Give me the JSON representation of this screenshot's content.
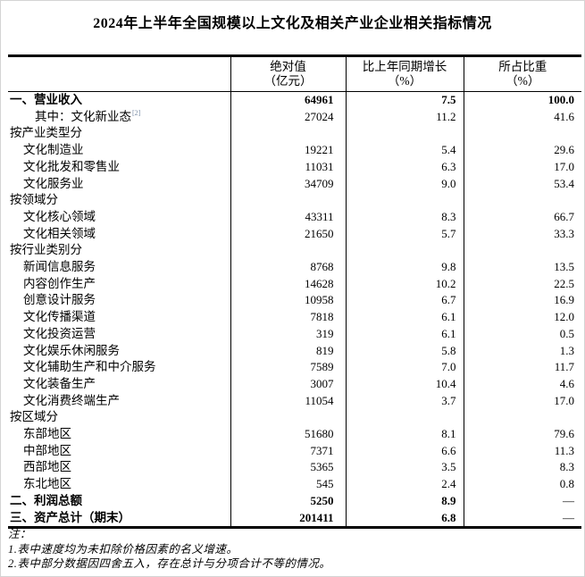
{
  "page": {
    "title": "2024年上半年全国规模以上文化及相关产业企业相关指标情况"
  },
  "table": {
    "header": {
      "label_col": "",
      "cols": [
        {
          "line1": "绝对值",
          "line2": "（亿元）"
        },
        {
          "line1": "比上年同期增长",
          "line2": "（%）"
        },
        {
          "line1": "所占比重",
          "line2": "（%）"
        }
      ]
    },
    "rows": [
      {
        "label": "一、营业收入",
        "indent": 0,
        "bold": true,
        "values": [
          "64961",
          "7.5",
          "100.0"
        ]
      },
      {
        "label": "其中：文化新业态",
        "sup": "[2]",
        "indent": 2,
        "bold": false,
        "values": [
          "27024",
          "11.2",
          "41.6"
        ]
      },
      {
        "label": "按产业类型分",
        "indent": 0,
        "bold": false,
        "values": [
          "",
          "",
          ""
        ]
      },
      {
        "label": "文化制造业",
        "indent": 1,
        "bold": false,
        "values": [
          "19221",
          "5.4",
          "29.6"
        ]
      },
      {
        "label": "文化批发和零售业",
        "indent": 1,
        "bold": false,
        "values": [
          "11031",
          "6.3",
          "17.0"
        ]
      },
      {
        "label": "文化服务业",
        "indent": 1,
        "bold": false,
        "values": [
          "34709",
          "9.0",
          "53.4"
        ]
      },
      {
        "label": "按领域分",
        "indent": 0,
        "bold": false,
        "values": [
          "",
          "",
          ""
        ]
      },
      {
        "label": "文化核心领域",
        "indent": 1,
        "bold": false,
        "values": [
          "43311",
          "8.3",
          "66.7"
        ]
      },
      {
        "label": "文化相关领域",
        "indent": 1,
        "bold": false,
        "values": [
          "21650",
          "5.7",
          "33.3"
        ]
      },
      {
        "label": "按行业类别分",
        "indent": 0,
        "bold": false,
        "values": [
          "",
          "",
          ""
        ]
      },
      {
        "label": "新闻信息服务",
        "indent": 1,
        "bold": false,
        "values": [
          "8768",
          "9.8",
          "13.5"
        ]
      },
      {
        "label": "内容创作生产",
        "indent": 1,
        "bold": false,
        "values": [
          "14628",
          "10.2",
          "22.5"
        ]
      },
      {
        "label": "创意设计服务",
        "indent": 1,
        "bold": false,
        "values": [
          "10958",
          "6.7",
          "16.9"
        ]
      },
      {
        "label": "文化传播渠道",
        "indent": 1,
        "bold": false,
        "values": [
          "7818",
          "6.1",
          "12.0"
        ]
      },
      {
        "label": "文化投资运营",
        "indent": 1,
        "bold": false,
        "values": [
          "319",
          "6.1",
          "0.5"
        ]
      },
      {
        "label": "文化娱乐休闲服务",
        "indent": 1,
        "bold": false,
        "values": [
          "819",
          "5.8",
          "1.3"
        ]
      },
      {
        "label": "文化辅助生产和中介服务",
        "indent": 1,
        "bold": false,
        "values": [
          "7589",
          "7.0",
          "11.7"
        ]
      },
      {
        "label": "文化装备生产",
        "indent": 1,
        "bold": false,
        "values": [
          "3007",
          "10.4",
          "4.6"
        ]
      },
      {
        "label": "文化消费终端生产",
        "indent": 1,
        "bold": false,
        "values": [
          "11054",
          "3.7",
          "17.0"
        ]
      },
      {
        "label": "按区域分",
        "indent": 0,
        "bold": false,
        "values": [
          "",
          "",
          ""
        ]
      },
      {
        "label": "东部地区",
        "indent": 1,
        "bold": false,
        "values": [
          "51680",
          "8.1",
          "79.6"
        ]
      },
      {
        "label": "中部地区",
        "indent": 1,
        "bold": false,
        "values": [
          "7371",
          "6.6",
          "11.3"
        ]
      },
      {
        "label": "西部地区",
        "indent": 1,
        "bold": false,
        "values": [
          "5365",
          "3.5",
          "8.3"
        ]
      },
      {
        "label": "东北地区",
        "indent": 1,
        "bold": false,
        "values": [
          "545",
          "2.4",
          "0.8"
        ]
      },
      {
        "label": "二、利润总额",
        "indent": 0,
        "bold": true,
        "values": [
          "5250",
          "8.9",
          "—"
        ]
      },
      {
        "label": "三、资产总计（期末）",
        "indent": 0,
        "bold": true,
        "values": [
          "201411",
          "6.8",
          "—"
        ]
      }
    ]
  },
  "notes": {
    "label": "注：",
    "items": [
      "1.表中速度均为未扣除价格因素的名义增速。",
      "2.表中部分数据因四舍五入，存在总计与分项合计不等的情况。"
    ]
  }
}
